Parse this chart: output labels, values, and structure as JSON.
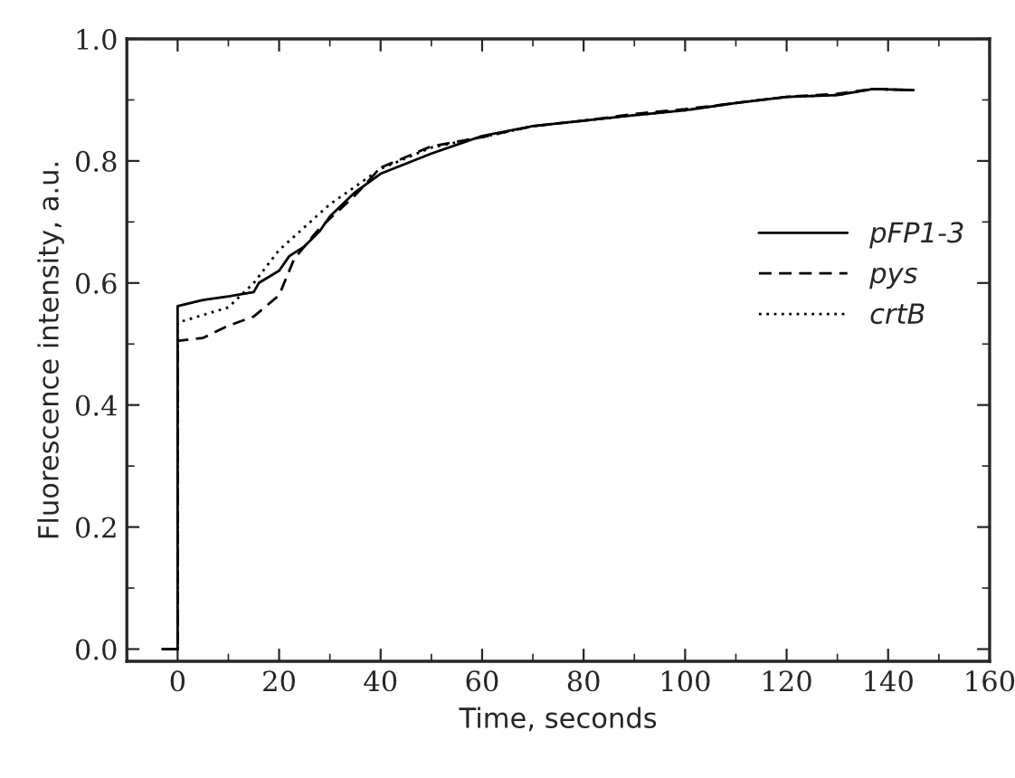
{
  "chart_data": {
    "type": "line",
    "xlabel": "Time, seconds",
    "ylabel": "Fluorescence intensity, a.u.",
    "xlim": [
      -10,
      160
    ],
    "xticks": [
      0,
      20,
      40,
      60,
      80,
      100,
      120,
      140,
      160
    ],
    "ylim": [
      -0.02,
      1.0
    ],
    "yticks": [
      {
        "value": 0,
        "label": "0.0"
      },
      {
        "value": 0.2,
        "label": "0.2"
      },
      {
        "value": 0.4,
        "label": "0.4"
      },
      {
        "value": 0.6,
        "label": "0.6"
      },
      {
        "value": 0.8,
        "label": "0.8"
      },
      {
        "value": 1.0,
        "label": "1.0"
      }
    ],
    "legend": "right",
    "grid": false,
    "marker": "none",
    "series": [
      {
        "name": "pFP1-3",
        "color": "#000000",
        "line_style": "solid",
        "x": [
          -3,
          0,
          0,
          5,
          10,
          15,
          16,
          20,
          22,
          25,
          28,
          30,
          35,
          40,
          50,
          60,
          70,
          80,
          90,
          100,
          110,
          120,
          130,
          137,
          145
        ],
        "values": [
          0,
          0,
          0.562,
          0.572,
          0.578,
          0.585,
          0.6,
          0.62,
          0.644,
          0.66,
          0.685,
          0.709,
          0.749,
          0.779,
          0.812,
          0.841,
          0.857,
          0.866,
          0.875,
          0.883,
          0.895,
          0.905,
          0.908,
          0.918,
          0.916
        ]
      },
      {
        "name": "pys",
        "color": "#000000",
        "line_style": "dashed",
        "x": [
          -3,
          0,
          0,
          5,
          10,
          15,
          20,
          23,
          28,
          35,
          40,
          50,
          60,
          70,
          80,
          90,
          100,
          110,
          120,
          130,
          137,
          145
        ],
        "values": [
          0,
          0,
          0.505,
          0.51,
          0.53,
          0.545,
          0.58,
          0.64,
          0.69,
          0.744,
          0.789,
          0.824,
          0.839,
          0.857,
          0.866,
          0.877,
          0.885,
          0.895,
          0.905,
          0.91,
          0.918,
          0.916
        ]
      },
      {
        "name": "crtB",
        "color": "#000000",
        "line_style": "dotted",
        "x": [
          -3,
          0,
          0,
          10,
          15,
          20,
          30,
          40,
          50,
          60,
          70,
          80,
          90,
          100,
          110,
          120,
          130,
          137,
          145
        ],
        "values": [
          0,
          0,
          0.535,
          0.56,
          0.6,
          0.654,
          0.729,
          0.787,
          0.822,
          0.839,
          0.857,
          0.866,
          0.875,
          0.883,
          0.895,
          0.905,
          0.908,
          0.918,
          0.916
        ]
      }
    ]
  }
}
